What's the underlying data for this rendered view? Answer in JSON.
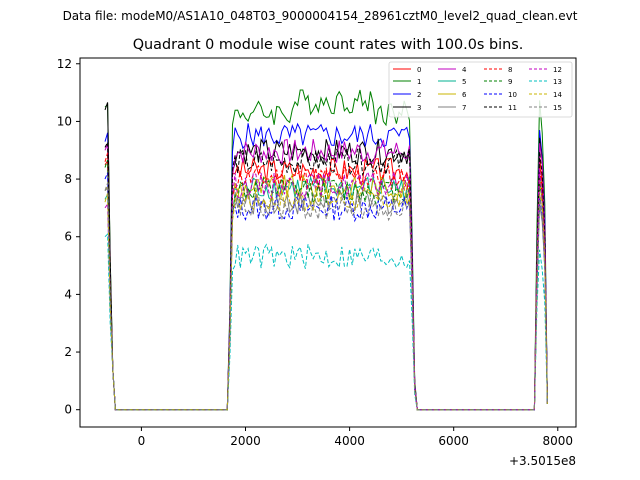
{
  "header": {
    "suptitle": "Data file: modeM0/AS1A10_048T03_9000004154_28961cztM0_level2_quad_clean.evt"
  },
  "chart_data": {
    "type": "line",
    "title": "Quadrant 0 module wise count rates with 100.0s bins.",
    "xlabel": "",
    "ylabel": "",
    "x_offset_label": "+3.5015e8",
    "xlim": [
      -1180,
      8350
    ],
    "ylim": [
      -0.6,
      12.2
    ],
    "xticks": [
      0,
      2000,
      4000,
      6000,
      8000
    ],
    "xtick_labels": [
      "0",
      "2000",
      "4000",
      "6000",
      "8000"
    ],
    "yticks": [
      0,
      2,
      4,
      6,
      8,
      10,
      12
    ],
    "ytick_labels": [
      "0",
      "2",
      "4",
      "6",
      "8",
      "10",
      "12"
    ],
    "legend_position": "upper right",
    "legend_columns": 4,
    "segment_pattern_x": [
      -700,
      -600,
      -500,
      -400,
      1650,
      1700,
      1750,
      1800,
      1850,
      1900,
      1950,
      2000,
      5100,
      5150,
      5200,
      5250,
      5300,
      5350,
      5400,
      5450,
      7550,
      7600,
      7650,
      7700,
      7750,
      7800,
      7850,
      7900,
      7950
    ],
    "series": [
      {
        "name": "0",
        "color": "#ff0000",
        "dash": "solid",
        "base": 8.2,
        "active": 8.3,
        "start_val": 8.5
      },
      {
        "name": "1",
        "color": "#008000",
        "dash": "solid",
        "base": 10.2,
        "active": 10.3,
        "start_val": 10.5
      },
      {
        "name": "2",
        "color": "#0000ff",
        "dash": "solid",
        "base": 9.4,
        "active": 9.5,
        "start_val": 9.3
      },
      {
        "name": "3",
        "color": "#000000",
        "dash": "solid",
        "base": 8.9,
        "active": 8.95,
        "start_val": 10.4
      },
      {
        "name": "4",
        "color": "#c000c0",
        "dash": "solid",
        "base": 8.9,
        "active": 8.95,
        "start_val": 9.0
      },
      {
        "name": "5",
        "color": "#00b090",
        "dash": "solid",
        "base": 7.6,
        "active": 7.7,
        "start_val": 7.3
      },
      {
        "name": "6",
        "color": "#c8b400",
        "dash": "solid",
        "base": 7.6,
        "active": 7.7,
        "start_val": 7.6
      },
      {
        "name": "7",
        "color": "#808080",
        "dash": "solid",
        "base": 7.0,
        "active": 7.2,
        "start_val": 7.6
      },
      {
        "name": "8",
        "color": "#ff0000",
        "dash": "dashed",
        "base": 8.0,
        "active": 8.05,
        "start_val": 8.6
      },
      {
        "name": "9",
        "color": "#008000",
        "dash": "dashed",
        "base": 7.6,
        "active": 7.6,
        "start_val": 8.4
      },
      {
        "name": "10",
        "color": "#0000ff",
        "dash": "dashed",
        "base": 7.0,
        "active": 7.0,
        "start_val": 8.0
      },
      {
        "name": "11",
        "color": "#000000",
        "dash": "dashed",
        "base": 8.6,
        "active": 8.6,
        "start_val": 9.1
      },
      {
        "name": "12",
        "color": "#c000c0",
        "dash": "dashed",
        "base": 7.8,
        "active": 7.8,
        "start_val": 7.0
      },
      {
        "name": "13",
        "color": "#00bfbf",
        "dash": "dashed",
        "base": 5.3,
        "active": 5.3,
        "start_val": 6.0
      },
      {
        "name": "14",
        "color": "#c8b400",
        "dash": "dashed",
        "base": 7.3,
        "active": 7.3,
        "start_val": 7.2
      },
      {
        "name": "15",
        "color": "#808080",
        "dash": "dashed",
        "base": 7.0,
        "active": 7.0,
        "start_val": 7.6
      }
    ],
    "gaps": [
      [
        -500,
        1650
      ],
      [
        5450,
        7550
      ]
    ]
  }
}
